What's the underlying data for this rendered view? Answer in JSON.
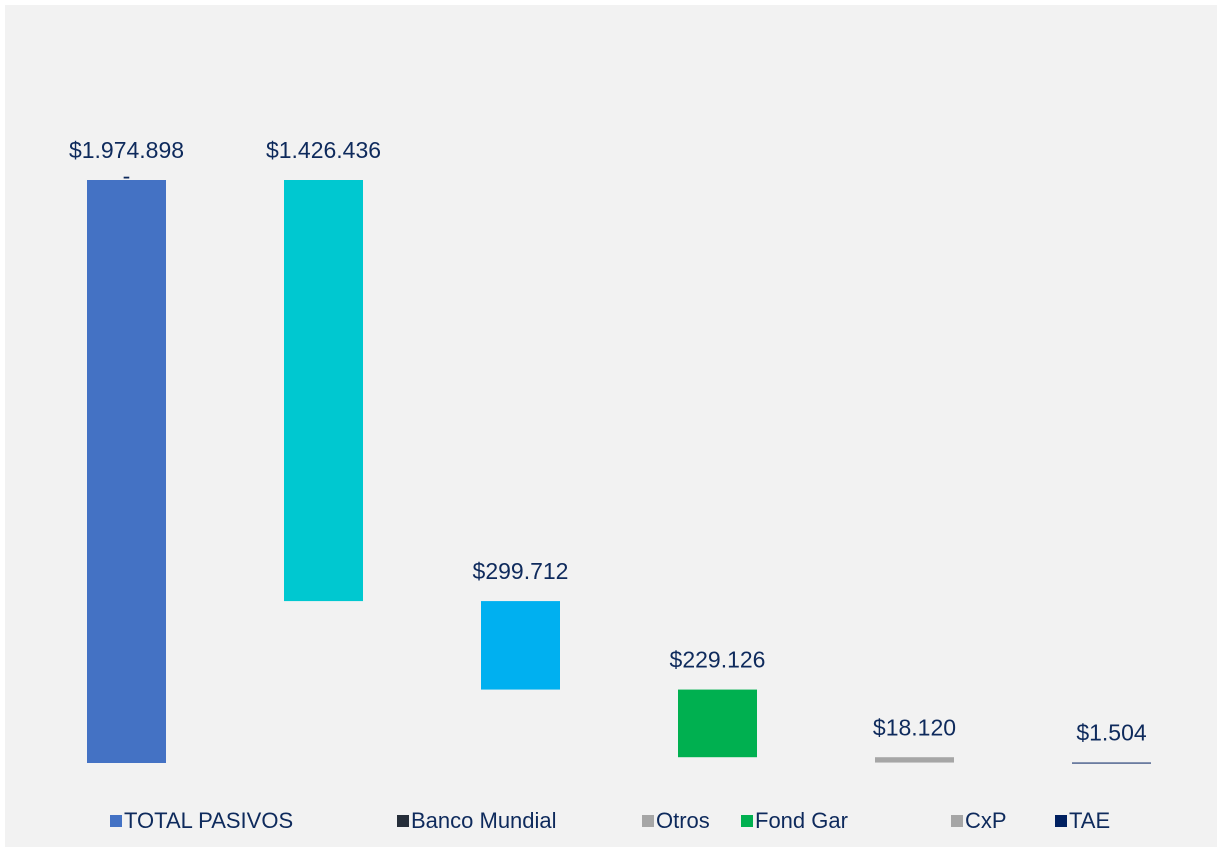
{
  "chart_data": {
    "type": "waterfall",
    "values": [
      1974898,
      1426436,
      299712,
      229126,
      18120,
      1504
    ],
    "value_labels": [
      "$1.974.898",
      "$1.426.436",
      "$299.712",
      "$229.126",
      "$18.120",
      "$1.504"
    ],
    "colors": [
      "#4472c4",
      "#00c8d0",
      "#00b0f0",
      "#00b050",
      "#a6a6a6",
      "#002060"
    ],
    "annotations": [
      "-"
    ],
    "legend": [
      {
        "name": "TOTAL PASIVOS",
        "color": "#4472c4"
      },
      {
        "name": "Banco Mundial",
        "color": "#262e3a"
      },
      {
        "name": "Otros",
        "color": "#a6a6a6"
      },
      {
        "name": "Fond Gar",
        "color": "#00b050"
      },
      {
        "name": "CxP",
        "color": "#a6a6a6"
      },
      {
        "name": "TAE",
        "color": "#002060"
      }
    ]
  }
}
